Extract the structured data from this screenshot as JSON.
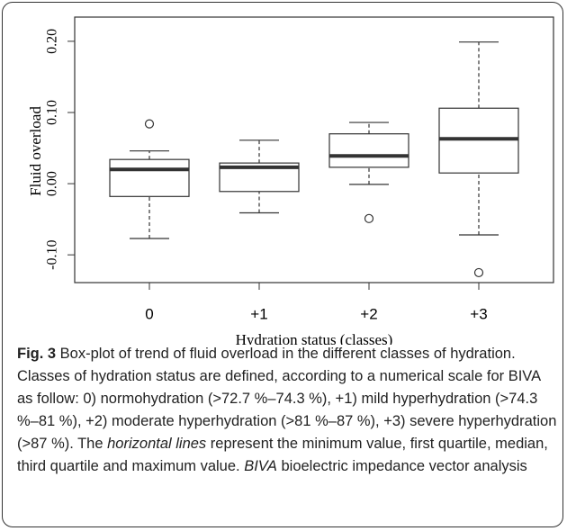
{
  "chart_data": {
    "type": "box",
    "x_label": "Hydration status (classes)",
    "y_label": "Fluid overload",
    "categories": [
      "0",
      "+1",
      "+2",
      "+3"
    ],
    "boxes": [
      {
        "low": -0.077,
        "q1": -0.018,
        "median": 0.02,
        "q3": 0.034,
        "high": 0.046,
        "outliers": [
          0.084
        ]
      },
      {
        "low": -0.041,
        "q1": -0.011,
        "median": 0.023,
        "q3": 0.029,
        "high": 0.061,
        "outliers": []
      },
      {
        "low": -0.001,
        "q1": 0.023,
        "median": 0.039,
        "q3": 0.07,
        "high": 0.086,
        "outliers": [
          -0.049
        ]
      },
      {
        "low": -0.072,
        "q1": 0.015,
        "median": 0.063,
        "q3": 0.106,
        "high": 0.199,
        "outliers": [
          -0.125
        ]
      }
    ],
    "ylim": [
      -0.139,
      0.234
    ],
    "yticks": [
      {
        "value": 0.2,
        "label": "0.20"
      },
      {
        "value": 0.1,
        "label": "0.10"
      },
      {
        "value": 0,
        "label": "0.00"
      },
      {
        "value": -0.1,
        "label": "-0.10"
      }
    ],
    "caption": [
      "Fig. 3",
      " Box-plot of trend of fluid overload in the different classes of hydration. Classes of hydration status are defined, according to a numerical scale for BIVA as follow: 0) normohydration (>72.7 %–74.3 %), +1) mild hyperhydration (>74.3 %–81 %), +2) moderate hyperhydration (>81 %–87 %), +3) severe hyperhydration (>87 %). The ",
      "horizontal lines",
      " represent the minimum value, first quartile, median, third quartile and maximum value. ",
      "BIVA",
      " bioelectric impedance vector analysis"
    ]
  }
}
